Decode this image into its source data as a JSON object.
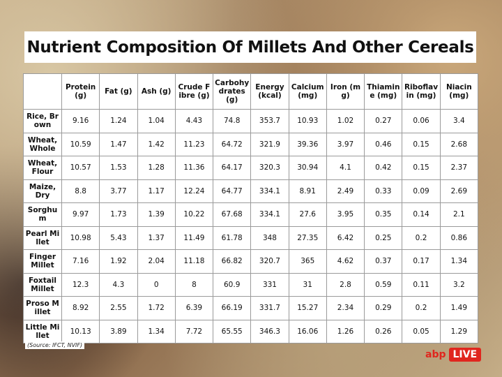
{
  "header": {
    "title": "Nutrient Composition Of Millets And Other Cereals"
  },
  "table": {
    "columns": [
      "Protein (g)",
      "Fat (g)",
      "Ash (g)",
      "Crude Fibre (g)",
      "Carbohydrates (g)",
      "Energy (kcal)",
      "Calcium (mg)",
      "Iron (mg)",
      "Thiamine (mg)",
      "Riboflavin (mg)",
      "Niacin (mg)"
    ],
    "rows": [
      {
        "label": "Rice, Brown",
        "cells": [
          "9.16",
          "1.24",
          "1.04",
          "4.43",
          "74.8",
          "353.7",
          "10.93",
          "1.02",
          "0.27",
          "0.06",
          "3.4"
        ]
      },
      {
        "label": "Wheat, Whole",
        "cells": [
          "10.59",
          "1.47",
          "1.42",
          "11.23",
          "64.72",
          "321.9",
          "39.36",
          "3.97",
          "0.46",
          "0.15",
          "2.68"
        ]
      },
      {
        "label": "Wheat, Flour",
        "cells": [
          "10.57",
          "1.53",
          "1.28",
          "11.36",
          "64.17",
          "320.3",
          "30.94",
          "4.1",
          "0.42",
          "0.15",
          "2.37"
        ]
      },
      {
        "label": "Maize, Dry",
        "cells": [
          "8.8",
          "3.77",
          "1.17",
          "12.24",
          "64.77",
          "334.1",
          "8.91",
          "2.49",
          "0.33",
          "0.09",
          "2.69"
        ]
      },
      {
        "label": "Sorghum",
        "cells": [
          "9.97",
          "1.73",
          "1.39",
          "10.22",
          "67.68",
          "334.1",
          "27.6",
          "3.95",
          "0.35",
          "0.14",
          "2.1"
        ]
      },
      {
        "label": "Pearl Millet",
        "cells": [
          "10.98",
          "5.43",
          "1.37",
          "11.49",
          "61.78",
          "348",
          "27.35",
          "6.42",
          "0.25",
          "0.2",
          "0.86"
        ]
      },
      {
        "label": "Finger Millet",
        "cells": [
          "7.16",
          "1.92",
          "2.04",
          "11.18",
          "66.82",
          "320.7",
          "365",
          "4.62",
          "0.37",
          "0.17",
          "1.34"
        ]
      },
      {
        "label": "Foxtail Millet",
        "cells": [
          "12.3",
          "4.3",
          "0",
          "8",
          "60.9",
          "331",
          "31",
          "2.8",
          "0.59",
          "0.11",
          "3.2"
        ]
      },
      {
        "label": "Proso Millet",
        "cells": [
          "8.92",
          "2.55",
          "1.72",
          "6.39",
          "66.19",
          "331.7",
          "15.27",
          "2.34",
          "0.29",
          "0.2",
          "1.49"
        ]
      },
      {
        "label": "Little Millet",
        "cells": [
          "10.13",
          "3.89",
          "1.34",
          "7.72",
          "65.55",
          "346.3",
          "16.06",
          "1.26",
          "0.26",
          "0.05",
          "1.29"
        ]
      }
    ]
  },
  "source": "(Source: IFCT, NVIF)",
  "logo": {
    "brand": "abp",
    "badge": "LIVE"
  }
}
